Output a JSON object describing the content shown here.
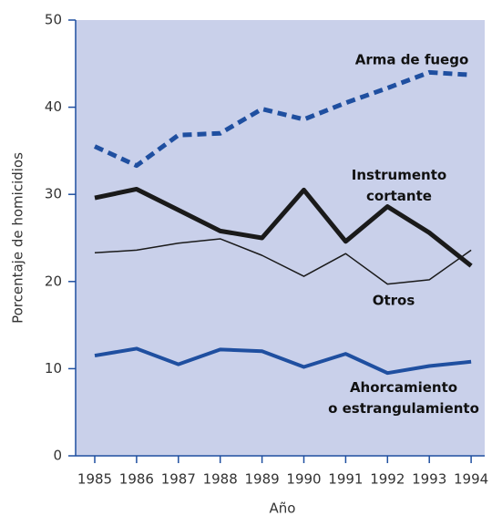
{
  "chart_data": {
    "type": "line",
    "x_label": "Año",
    "y_label": "Porcentaje de homicidios",
    "categories": [
      "1985",
      "1986",
      "1987",
      "1988",
      "1989",
      "1990",
      "1991",
      "1992",
      "1993",
      "1994"
    ],
    "series": [
      {
        "name": "Arma de fuego",
        "color": "#1f4fa0",
        "values": [
          35.5,
          33.3,
          36.8,
          37.0,
          39.8,
          38.6,
          40.5,
          42.2,
          44.0,
          43.7
        ]
      },
      {
        "name": "Instrumento\ncortante",
        "color": "#1a1a1a",
        "values": [
          29.6,
          30.6,
          28.2,
          25.8,
          25.0,
          30.5,
          24.6,
          28.6,
          25.6,
          21.8
        ]
      },
      {
        "name": "Otros",
        "color": "#1a1a1a",
        "values": [
          23.3,
          23.6,
          24.4,
          24.9,
          23.0,
          20.6,
          23.2,
          19.7,
          20.2,
          23.6
        ]
      },
      {
        "name": "Ahorcamiento\no estrangulamiento",
        "color": "#1f4fa0",
        "values": [
          11.5,
          12.3,
          10.5,
          12.2,
          12.0,
          10.2,
          11.7,
          9.5,
          10.3,
          10.8
        ]
      }
    ],
    "ylim": [
      0,
      50
    ],
    "yticks": [
      0,
      10,
      20,
      30,
      40,
      50
    ]
  }
}
